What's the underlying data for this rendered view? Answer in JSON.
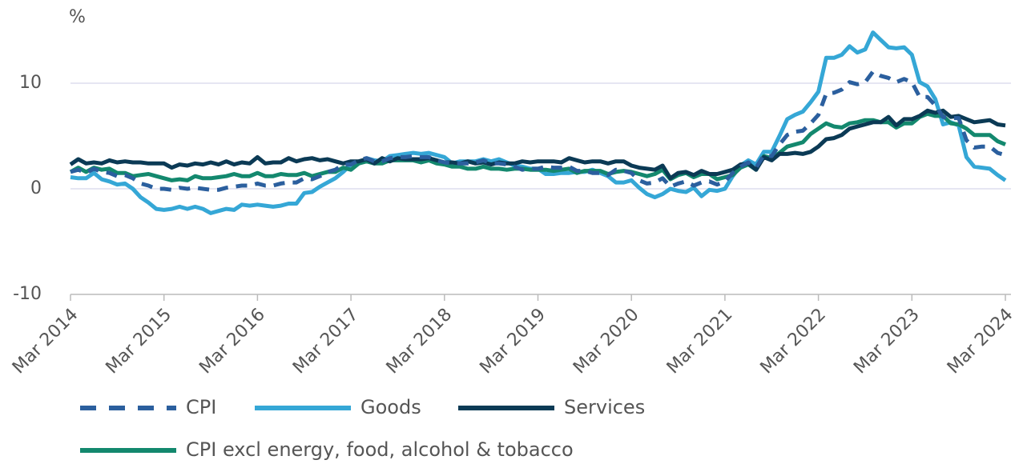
{
  "chart_data": {
    "type": "line",
    "ylabel": "%",
    "categories": [
      "Mar 2014",
      null,
      null,
      null,
      null,
      null,
      null,
      null,
      null,
      null,
      null,
      null,
      "Mar 2015",
      null,
      null,
      null,
      null,
      null,
      null,
      null,
      null,
      null,
      null,
      null,
      "Mar 2016",
      null,
      null,
      null,
      null,
      null,
      null,
      null,
      null,
      null,
      null,
      null,
      "Mar 2017",
      null,
      null,
      null,
      null,
      null,
      null,
      null,
      null,
      null,
      null,
      null,
      "Mar 2018",
      null,
      null,
      null,
      null,
      null,
      null,
      null,
      null,
      null,
      null,
      null,
      "Mar 2019",
      null,
      null,
      null,
      null,
      null,
      null,
      null,
      null,
      null,
      null,
      null,
      "Mar 2020",
      null,
      null,
      null,
      null,
      null,
      null,
      null,
      null,
      null,
      null,
      null,
      "Mar 2021",
      null,
      null,
      null,
      null,
      null,
      null,
      null,
      null,
      null,
      null,
      null,
      "Mar 2022",
      null,
      null,
      null,
      null,
      null,
      null,
      null,
      null,
      null,
      null,
      null,
      "Mar 2023",
      null,
      null,
      null,
      null,
      null,
      null,
      null,
      null,
      null,
      null,
      null,
      "Mar 2024"
    ],
    "ylim": [
      -10,
      15
    ],
    "yticks": [
      -10,
      0,
      10
    ],
    "grid": true,
    "series": [
      {
        "name": "CPI",
        "color": "#2b5f9e",
        "dashed": true,
        "values": [
          1.6,
          1.8,
          1.5,
          1.9,
          1.6,
          1.5,
          1.2,
          1.3,
          1.0,
          0.5,
          0.3,
          0.0,
          0.0,
          -0.1,
          0.1,
          0.0,
          0.1,
          0.0,
          -0.1,
          -0.1,
          0.1,
          0.2,
          0.3,
          0.3,
          0.5,
          0.3,
          0.3,
          0.5,
          0.6,
          0.6,
          1.0,
          0.9,
          1.2,
          1.6,
          1.8,
          2.3,
          2.3,
          2.7,
          2.9,
          2.6,
          2.6,
          2.9,
          3.0,
          3.0,
          3.1,
          3.0,
          3.0,
          2.7,
          2.5,
          2.4,
          2.4,
          2.4,
          2.5,
          2.7,
          2.4,
          2.4,
          2.3,
          2.1,
          1.8,
          1.9,
          1.9,
          2.1,
          2.0,
          2.0,
          2.1,
          1.7,
          1.7,
          1.5,
          1.5,
          1.3,
          1.8,
          1.7,
          1.5,
          0.8,
          0.5,
          0.6,
          1.0,
          0.2,
          0.5,
          0.7,
          0.3,
          0.6,
          0.7,
          0.4,
          0.7,
          1.5,
          2.1,
          2.5,
          2.0,
          3.2,
          3.1,
          4.2,
          5.1,
          5.4,
          5.5,
          6.2,
          7.0,
          9.0,
          9.1,
          9.4,
          10.1,
          9.9,
          10.1,
          11.1,
          10.7,
          10.5,
          10.1,
          10.4,
          10.1,
          8.7,
          8.7,
          7.9,
          6.8,
          6.7,
          6.7,
          4.6,
          3.9,
          4.0,
          4.0,
          3.4,
          3.2
        ]
      },
      {
        "name": "Goods",
        "color": "#35a7d6",
        "values": [
          1.1,
          1.0,
          1.0,
          1.5,
          0.9,
          0.7,
          0.4,
          0.5,
          0.0,
          -0.8,
          -1.3,
          -1.9,
          -2.0,
          -1.9,
          -1.7,
          -1.9,
          -1.7,
          -1.9,
          -2.3,
          -2.1,
          -1.9,
          -2.0,
          -1.5,
          -1.6,
          -1.5,
          -1.6,
          -1.7,
          -1.6,
          -1.4,
          -1.4,
          -0.4,
          -0.3,
          0.2,
          0.6,
          1.0,
          1.6,
          2.3,
          2.4,
          2.9,
          2.7,
          2.6,
          3.1,
          3.2,
          3.3,
          3.4,
          3.3,
          3.4,
          3.2,
          3.0,
          2.4,
          2.6,
          2.6,
          2.6,
          2.8,
          2.6,
          2.8,
          2.5,
          2.2,
          2.1,
          1.9,
          1.9,
          1.4,
          1.4,
          1.5,
          1.5,
          1.6,
          1.6,
          1.8,
          1.5,
          1.2,
          0.6,
          0.6,
          0.8,
          0.1,
          -0.5,
          -0.8,
          -0.5,
          0.0,
          -0.2,
          -0.3,
          0.1,
          -0.7,
          -0.1,
          -0.2,
          0.0,
          1.2,
          2.2,
          2.7,
          2.3,
          3.5,
          3.5,
          5.0,
          6.6,
          7.0,
          7.3,
          8.2,
          9.2,
          12.4,
          12.4,
          12.7,
          13.5,
          12.9,
          13.2,
          14.8,
          14.1,
          13.4,
          13.3,
          13.4,
          12.7,
          10.1,
          9.7,
          8.5,
          6.1,
          6.3,
          6.0,
          3.0,
          2.1,
          2.0,
          1.9,
          1.3,
          0.8
        ]
      },
      {
        "name": "Services",
        "color": "#0b3a55",
        "values": [
          2.3,
          2.8,
          2.4,
          2.5,
          2.4,
          2.7,
          2.5,
          2.6,
          2.5,
          2.5,
          2.4,
          2.4,
          2.4,
          2.0,
          2.3,
          2.2,
          2.4,
          2.3,
          2.5,
          2.3,
          2.6,
          2.3,
          2.5,
          2.4,
          3.0,
          2.4,
          2.5,
          2.5,
          2.9,
          2.6,
          2.8,
          2.9,
          2.7,
          2.8,
          2.6,
          2.4,
          2.6,
          2.6,
          2.8,
          2.4,
          2.9,
          2.6,
          2.9,
          2.8,
          2.8,
          2.8,
          2.9,
          2.7,
          2.5,
          2.5,
          2.4,
          2.6,
          2.4,
          2.5,
          2.3,
          2.5,
          2.4,
          2.4,
          2.6,
          2.5,
          2.6,
          2.6,
          2.6,
          2.5,
          2.9,
          2.7,
          2.5,
          2.6,
          2.6,
          2.4,
          2.6,
          2.6,
          2.2,
          2.0,
          1.9,
          1.8,
          2.2,
          1.0,
          1.5,
          1.6,
          1.3,
          1.7,
          1.4,
          1.4,
          1.6,
          1.8,
          2.3,
          2.4,
          1.8,
          3.0,
          2.7,
          3.3,
          3.3,
          3.4,
          3.3,
          3.5,
          4.0,
          4.7,
          4.8,
          5.1,
          5.7,
          5.9,
          6.1,
          6.3,
          6.3,
          6.8,
          6.0,
          6.6,
          6.6,
          6.9,
          7.4,
          7.2,
          7.4,
          6.8,
          6.9,
          6.6,
          6.3,
          6.4,
          6.5,
          6.1,
          6.0
        ]
      },
      {
        "name": "CPI excl energy, food, alcohol & tobacco",
        "color": "#13886e",
        "values": [
          1.6,
          2.0,
          1.6,
          2.0,
          1.8,
          1.9,
          1.5,
          1.5,
          1.2,
          1.3,
          1.4,
          1.2,
          1.0,
          0.8,
          0.9,
          0.8,
          1.2,
          1.0,
          1.0,
          1.1,
          1.2,
          1.4,
          1.2,
          1.2,
          1.5,
          1.2,
          1.2,
          1.4,
          1.3,
          1.3,
          1.5,
          1.2,
          1.4,
          1.6,
          1.6,
          2.0,
          1.8,
          2.4,
          2.6,
          2.4,
          2.4,
          2.7,
          2.7,
          2.7,
          2.7,
          2.5,
          2.7,
          2.4,
          2.3,
          2.1,
          2.1,
          1.9,
          1.9,
          2.1,
          1.9,
          1.9,
          1.8,
          1.9,
          1.9,
          1.8,
          1.8,
          1.8,
          1.7,
          1.8,
          1.9,
          1.5,
          1.7,
          1.7,
          1.7,
          1.4,
          1.6,
          1.7,
          1.6,
          1.4,
          1.2,
          1.4,
          1.8,
          0.9,
          1.3,
          1.5,
          1.1,
          1.4,
          1.4,
          0.9,
          1.1,
          1.3,
          2.0,
          2.3,
          1.8,
          3.1,
          2.9,
          3.4,
          4.0,
          4.2,
          4.4,
          5.2,
          5.7,
          6.2,
          5.9,
          5.8,
          6.2,
          6.3,
          6.5,
          6.5,
          6.3,
          6.3,
          5.8,
          6.2,
          6.2,
          6.8,
          7.1,
          6.9,
          6.9,
          6.2,
          6.1,
          5.7,
          5.1,
          5.1,
          5.1,
          4.5,
          4.2
        ]
      }
    ]
  }
}
